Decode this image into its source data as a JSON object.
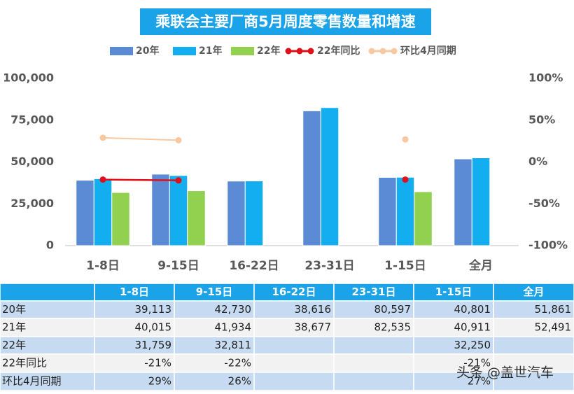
{
  "chart_data": {
    "type": "bar",
    "title": "乘联会主要厂商5月周度零售数量和增速",
    "categories": [
      "1-8日",
      "9-15日",
      "16-22日",
      "23-31日",
      "1-15日",
      "全月"
    ],
    "series": [
      {
        "name": "20年",
        "color": "#5b8bd5",
        "values": [
          39113,
          42730,
          38616,
          80597,
          40801,
          51861
        ],
        "value_labels": [
          "39,113",
          "42,730",
          "38,616",
          "80,597",
          "40,801",
          "51,861"
        ]
      },
      {
        "name": "21年",
        "color": "#12aef0",
        "values": [
          40015,
          41934,
          38677,
          82535,
          40911,
          52491
        ],
        "value_labels": [
          "40,015",
          "41,934",
          "38,677",
          "82,535",
          "40,911",
          "52,491"
        ]
      },
      {
        "name": "22年",
        "color": "#92d050",
        "values": [
          31759,
          32811,
          null,
          null,
          32250,
          null
        ],
        "value_labels": [
          "31,759",
          "32,811",
          null,
          null,
          "32,250",
          null
        ]
      },
      {
        "name": "22年同比",
        "type": "line",
        "axis": "y2",
        "color": "#e0101a",
        "values": [
          -21,
          -22,
          null,
          null,
          -21,
          null
        ],
        "value_labels": [
          "-21%",
          "-22%",
          null,
          null,
          "-21%",
          null
        ]
      },
      {
        "name": "环比4月同期",
        "type": "line",
        "axis": "y2",
        "color": "#f8c9a0",
        "values": [
          29,
          26,
          null,
          null,
          27,
          null
        ],
        "value_labels": [
          "29%",
          "26%",
          null,
          null,
          "27%",
          null
        ]
      }
    ],
    "ylim": [
      0,
      100000
    ],
    "yticks": [
      0,
      {
        "value": 25000,
        "label": "25,000"
      },
      {
        "value": 50000,
        "label": "50,000"
      },
      {
        "value": 75000,
        "label": "75,000"
      },
      {
        "value": 100000,
        "label": "100,000"
      }
    ],
    "y2lim": [
      -100,
      100
    ],
    "y2ticks": [
      {
        "value": -100,
        "label": "-100%"
      },
      {
        "value": -50,
        "label": "-50%"
      },
      {
        "value": 0,
        "label": "0%"
      },
      {
        "value": 50,
        "label": "50%"
      },
      {
        "value": 100,
        "label": "100%"
      }
    ],
    "grid": false,
    "legend": "top",
    "watermark": "头条 @盖世汽车"
  }
}
